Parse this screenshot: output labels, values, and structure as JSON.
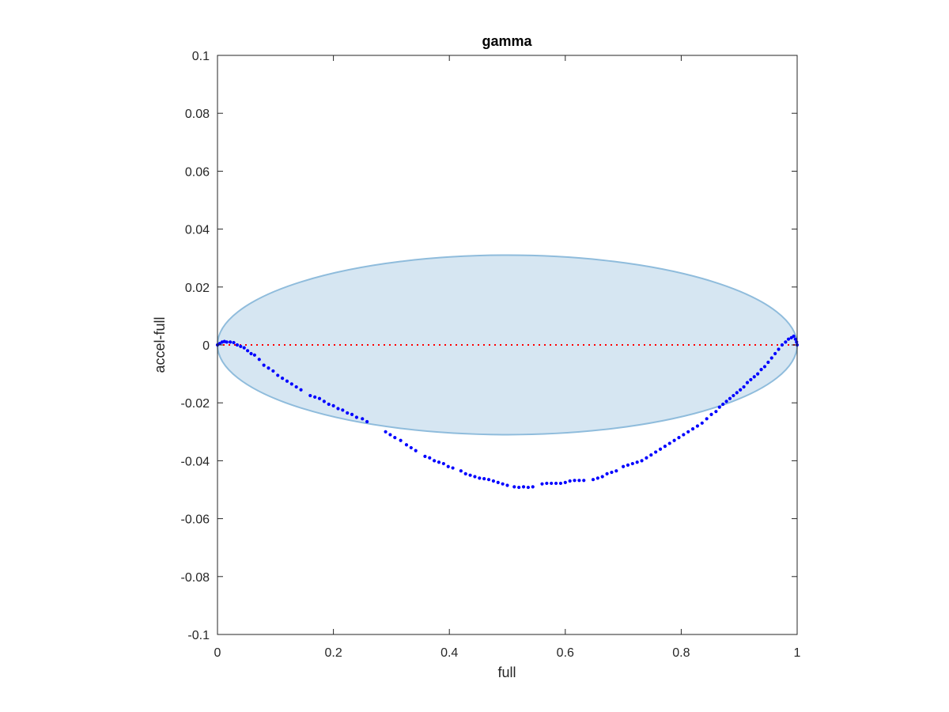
{
  "chart_data": {
    "type": "scatter",
    "title": "gamma",
    "xlabel": "full",
    "ylabel": "accel-full",
    "xlim": [
      0,
      1
    ],
    "ylim": [
      -0.1,
      0.1
    ],
    "xticks": [
      0,
      0.2,
      0.4,
      0.6,
      0.8,
      1
    ],
    "xtick_labels": [
      "0",
      "0.2",
      "0.4",
      "0.6",
      "0.8",
      "1"
    ],
    "yticks": [
      0.1,
      0.08,
      0.06,
      0.04,
      0.02,
      0,
      -0.02,
      -0.04,
      -0.06,
      -0.08,
      -0.1
    ],
    "ytick_labels": [
      "0.1",
      "0.08",
      "0.06",
      "0.04",
      "0.02",
      "0",
      "-0.02",
      "-0.04",
      "-0.06",
      "-0.08",
      "-0.1"
    ],
    "grid": false,
    "legend": "none",
    "reference_line": {
      "y": 0,
      "x_range": [
        0,
        1
      ],
      "style": "dotted",
      "color": "#ff0000"
    },
    "ellipse": {
      "cx": 0.5,
      "cy": 0,
      "rx": 0.5,
      "ry": 0.031,
      "fill": "#d6e6f2",
      "stroke": "#8fbcdc"
    },
    "series": [
      {
        "color": "#0000ff",
        "points": [
          [
            0.0,
            0.0
          ],
          [
            0.004,
            0.0005
          ],
          [
            0.008,
            0.001
          ],
          [
            0.012,
            0.0012
          ],
          [
            0.016,
            0.001
          ],
          [
            0.022,
            0.001
          ],
          [
            0.028,
            0.0008
          ],
          [
            0.034,
            0.0
          ],
          [
            0.04,
            -0.0005
          ],
          [
            0.046,
            -0.001
          ],
          [
            0.052,
            -0.002
          ],
          [
            0.058,
            -0.003
          ],
          [
            0.064,
            -0.0035
          ],
          [
            0.072,
            -0.005
          ],
          [
            0.08,
            -0.007
          ],
          [
            0.088,
            -0.008
          ],
          [
            0.096,
            -0.009
          ],
          [
            0.104,
            -0.0105
          ],
          [
            0.112,
            -0.0115
          ],
          [
            0.12,
            -0.0125
          ],
          [
            0.128,
            -0.0135
          ],
          [
            0.136,
            -0.0145
          ],
          [
            0.144,
            -0.0155
          ],
          [
            0.16,
            -0.0175
          ],
          [
            0.168,
            -0.018
          ],
          [
            0.176,
            -0.0185
          ],
          [
            0.184,
            -0.0195
          ],
          [
            0.192,
            -0.0205
          ],
          [
            0.2,
            -0.021
          ],
          [
            0.208,
            -0.022
          ],
          [
            0.216,
            -0.0225
          ],
          [
            0.224,
            -0.0235
          ],
          [
            0.232,
            -0.024
          ],
          [
            0.24,
            -0.025
          ],
          [
            0.25,
            -0.0255
          ],
          [
            0.258,
            -0.0265
          ],
          [
            0.29,
            -0.03
          ],
          [
            0.298,
            -0.031
          ],
          [
            0.306,
            -0.032
          ],
          [
            0.316,
            -0.033
          ],
          [
            0.326,
            -0.0345
          ],
          [
            0.334,
            -0.0355
          ],
          [
            0.342,
            -0.0365
          ],
          [
            0.358,
            -0.0385
          ],
          [
            0.366,
            -0.039
          ],
          [
            0.374,
            -0.04
          ],
          [
            0.382,
            -0.0405
          ],
          [
            0.39,
            -0.041
          ],
          [
            0.398,
            -0.042
          ],
          [
            0.406,
            -0.0425
          ],
          [
            0.42,
            -0.0435
          ],
          [
            0.428,
            -0.0445
          ],
          [
            0.436,
            -0.045
          ],
          [
            0.444,
            -0.0455
          ],
          [
            0.452,
            -0.046
          ],
          [
            0.46,
            -0.0462
          ],
          [
            0.468,
            -0.0465
          ],
          [
            0.476,
            -0.047
          ],
          [
            0.484,
            -0.0475
          ],
          [
            0.492,
            -0.048
          ],
          [
            0.5,
            -0.0485
          ],
          [
            0.512,
            -0.049
          ],
          [
            0.52,
            -0.0492
          ],
          [
            0.528,
            -0.049
          ],
          [
            0.536,
            -0.0492
          ],
          [
            0.544,
            -0.049
          ],
          [
            0.56,
            -0.048
          ],
          [
            0.568,
            -0.0478
          ],
          [
            0.576,
            -0.0478
          ],
          [
            0.584,
            -0.0478
          ],
          [
            0.592,
            -0.0478
          ],
          [
            0.6,
            -0.0475
          ],
          [
            0.608,
            -0.047
          ],
          [
            0.616,
            -0.0468
          ],
          [
            0.624,
            -0.0468
          ],
          [
            0.632,
            -0.0468
          ],
          [
            0.648,
            -0.0465
          ],
          [
            0.656,
            -0.046
          ],
          [
            0.664,
            -0.0455
          ],
          [
            0.672,
            -0.0445
          ],
          [
            0.68,
            -0.044
          ],
          [
            0.688,
            -0.0435
          ],
          [
            0.7,
            -0.042
          ],
          [
            0.708,
            -0.0415
          ],
          [
            0.716,
            -0.041
          ],
          [
            0.724,
            -0.0405
          ],
          [
            0.732,
            -0.04
          ],
          [
            0.74,
            -0.039
          ],
          [
            0.748,
            -0.038
          ],
          [
            0.756,
            -0.037
          ],
          [
            0.764,
            -0.036
          ],
          [
            0.772,
            -0.035
          ],
          [
            0.78,
            -0.034
          ],
          [
            0.788,
            -0.033
          ],
          [
            0.796,
            -0.032
          ],
          [
            0.804,
            -0.031
          ],
          [
            0.812,
            -0.03
          ],
          [
            0.82,
            -0.029
          ],
          [
            0.828,
            -0.028
          ],
          [
            0.836,
            -0.027
          ],
          [
            0.844,
            -0.0255
          ],
          [
            0.852,
            -0.024
          ],
          [
            0.86,
            -0.023
          ],
          [
            0.866,
            -0.0215
          ],
          [
            0.872,
            -0.0205
          ],
          [
            0.878,
            -0.0195
          ],
          [
            0.884,
            -0.0185
          ],
          [
            0.89,
            -0.0175
          ],
          [
            0.896,
            -0.0165
          ],
          [
            0.902,
            -0.0155
          ],
          [
            0.908,
            -0.0145
          ],
          [
            0.914,
            -0.013
          ],
          [
            0.92,
            -0.012
          ],
          [
            0.926,
            -0.011
          ],
          [
            0.932,
            -0.01
          ],
          [
            0.938,
            -0.0085
          ],
          [
            0.944,
            -0.0075
          ],
          [
            0.95,
            -0.006
          ],
          [
            0.956,
            -0.0045
          ],
          [
            0.962,
            -0.003
          ],
          [
            0.968,
            -0.0015
          ],
          [
            0.974,
            0.0
          ],
          [
            0.98,
            0.001
          ],
          [
            0.985,
            0.002
          ],
          [
            0.99,
            0.0025
          ],
          [
            0.994,
            0.003
          ],
          [
            0.997,
            0.002
          ],
          [
            0.999,
            0.001
          ],
          [
            1.0,
            0.0
          ]
        ]
      }
    ]
  }
}
